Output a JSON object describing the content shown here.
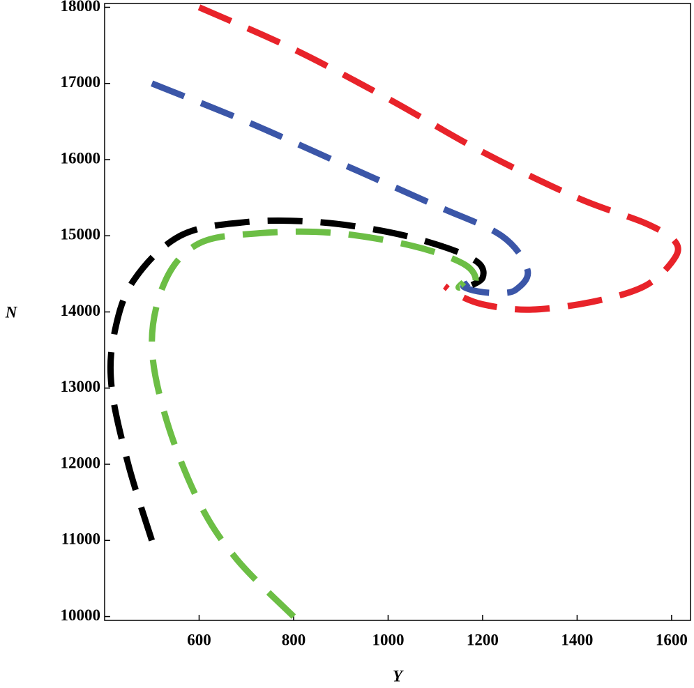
{
  "chart_data": {
    "type": "line",
    "x_label": "Y",
    "y_label": "N",
    "xlim": [
      400,
      1640
    ],
    "ylim": [
      9950,
      18050
    ],
    "xticks": [
      600,
      800,
      1000,
      1200,
      1400,
      1600
    ],
    "yticks": [
      10000,
      11000,
      12000,
      13000,
      14000,
      15000,
      16000,
      17000,
      18000
    ],
    "series": [
      {
        "color": "#e8232a",
        "x": [
          600,
          800,
          1000,
          1200,
          1400,
          1550,
          1610,
          1600,
          1540,
          1430,
          1300,
          1200,
          1140,
          1120
        ],
        "values": [
          18000,
          17450,
          16800,
          16100,
          15500,
          15150,
          14900,
          14650,
          14330,
          14130,
          14030,
          14100,
          14250,
          14340
        ]
      },
      {
        "color": "#3b56a8",
        "x": [
          500,
          700,
          900,
          1100,
          1240,
          1295,
          1270,
          1230,
          1190,
          1160,
          1170
        ],
        "values": [
          17000,
          16500,
          15950,
          15400,
          15000,
          14550,
          14290,
          14250,
          14270,
          14330,
          14380
        ]
      },
      {
        "color": "#000000",
        "x": [
          500,
          450,
          415,
          420,
          460,
          560,
          700,
          850,
          1000,
          1120,
          1190,
          1200,
          1170
        ],
        "values": [
          11000,
          12000,
          13000,
          13700,
          14400,
          15000,
          15180,
          15180,
          15050,
          14850,
          14650,
          14450,
          14330
        ]
      },
      {
        "color": "#6cbe45",
        "x": [
          800,
          680,
          600,
          530,
          500,
          530,
          600,
          720,
          880,
          1050,
          1160,
          1185,
          1150,
          1160
        ],
        "values": [
          10000,
          10750,
          11500,
          12600,
          13600,
          14430,
          14900,
          15030,
          15040,
          14870,
          14630,
          14400,
          14320,
          14390
        ]
      }
    ]
  }
}
